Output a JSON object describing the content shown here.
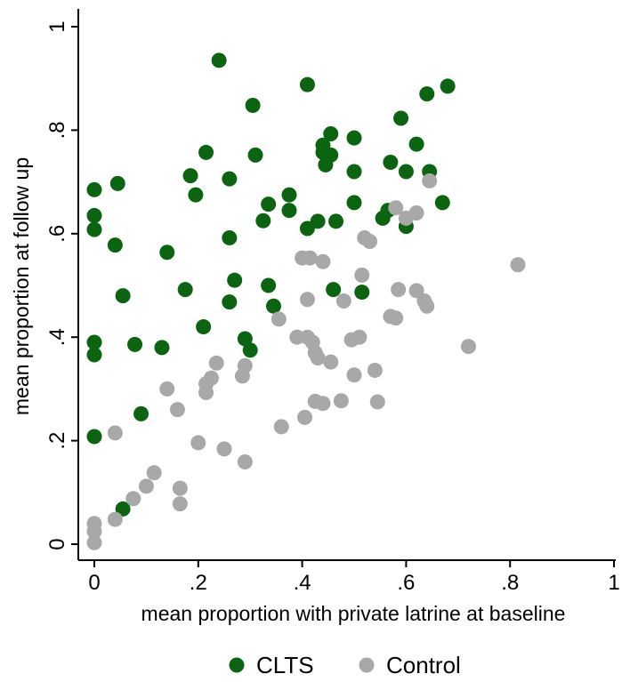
{
  "chart_data": {
    "type": "scatter",
    "xlabel": "mean proportion with private latrine at baseline",
    "ylabel": "mean proportion at follow up",
    "xlim": [
      0,
      1
    ],
    "ylim": [
      0,
      1
    ],
    "x_ticks": [
      0,
      0.2,
      0.4,
      0.6,
      0.8,
      1
    ],
    "y_ticks": [
      0,
      0.2,
      0.4,
      0.6,
      0.8,
      1
    ],
    "x_tick_labels": [
      "0",
      ".2",
      ".4",
      ".6",
      ".8",
      "1"
    ],
    "y_tick_labels": [
      "0",
      ".2",
      ".4",
      ".6",
      ".8",
      "1"
    ],
    "grid": false,
    "legend": "bottom",
    "series": [
      {
        "name": "CLTS",
        "color": "#0b6410",
        "points": [
          [
            0.0,
            0.685
          ],
          [
            0.0,
            0.635
          ],
          [
            0.0,
            0.608
          ],
          [
            0.0,
            0.39
          ],
          [
            0.0,
            0.366
          ],
          [
            0.0,
            0.208
          ],
          [
            0.04,
            0.578
          ],
          [
            0.045,
            0.697
          ],
          [
            0.055,
            0.48
          ],
          [
            0.055,
            0.068
          ],
          [
            0.078,
            0.386
          ],
          [
            0.09,
            0.252
          ],
          [
            0.13,
            0.38
          ],
          [
            0.14,
            0.564
          ],
          [
            0.175,
            0.492
          ],
          [
            0.185,
            0.712
          ],
          [
            0.195,
            0.675
          ],
          [
            0.21,
            0.42
          ],
          [
            0.215,
            0.757
          ],
          [
            0.26,
            0.706
          ],
          [
            0.26,
            0.592
          ],
          [
            0.26,
            0.468
          ],
          [
            0.27,
            0.51
          ],
          [
            0.24,
            0.935
          ],
          [
            0.29,
            0.397
          ],
          [
            0.3,
            0.375
          ],
          [
            0.305,
            0.848
          ],
          [
            0.31,
            0.752
          ],
          [
            0.325,
            0.625
          ],
          [
            0.335,
            0.657
          ],
          [
            0.335,
            0.5
          ],
          [
            0.345,
            0.46
          ],
          [
            0.375,
            0.675
          ],
          [
            0.375,
            0.645
          ],
          [
            0.41,
            0.888
          ],
          [
            0.41,
            0.61
          ],
          [
            0.43,
            0.624
          ],
          [
            0.44,
            0.771
          ],
          [
            0.44,
            0.757
          ],
          [
            0.445,
            0.733
          ],
          [
            0.455,
            0.752
          ],
          [
            0.455,
            0.793
          ],
          [
            0.46,
            0.492
          ],
          [
            0.465,
            0.624
          ],
          [
            0.5,
            0.785
          ],
          [
            0.5,
            0.72
          ],
          [
            0.5,
            0.66
          ],
          [
            0.515,
            0.487
          ],
          [
            0.555,
            0.63
          ],
          [
            0.565,
            0.645
          ],
          [
            0.57,
            0.738
          ],
          [
            0.59,
            0.823
          ],
          [
            0.6,
            0.72
          ],
          [
            0.6,
            0.614
          ],
          [
            0.62,
            0.773
          ],
          [
            0.64,
            0.87
          ],
          [
            0.645,
            0.72
          ],
          [
            0.67,
            0.66
          ],
          [
            0.68,
            0.885
          ]
        ]
      },
      {
        "name": "Control",
        "color": "#a8a8a8",
        "points": [
          [
            0.0,
            0.04
          ],
          [
            0.0,
            0.025
          ],
          [
            0.0,
            0.003
          ],
          [
            0.04,
            0.215
          ],
          [
            0.04,
            0.048
          ],
          [
            0.075,
            0.088
          ],
          [
            0.1,
            0.112
          ],
          [
            0.115,
            0.138
          ],
          [
            0.14,
            0.3
          ],
          [
            0.16,
            0.26
          ],
          [
            0.165,
            0.108
          ],
          [
            0.165,
            0.078
          ],
          [
            0.2,
            0.196
          ],
          [
            0.215,
            0.31
          ],
          [
            0.215,
            0.293
          ],
          [
            0.225,
            0.321
          ],
          [
            0.235,
            0.35
          ],
          [
            0.25,
            0.184
          ],
          [
            0.285,
            0.325
          ],
          [
            0.29,
            0.345
          ],
          [
            0.29,
            0.159
          ],
          [
            0.355,
            0.435
          ],
          [
            0.36,
            0.227
          ],
          [
            0.39,
            0.4
          ],
          [
            0.4,
            0.553
          ],
          [
            0.405,
            0.245
          ],
          [
            0.41,
            0.473
          ],
          [
            0.41,
            0.4
          ],
          [
            0.415,
            0.553
          ],
          [
            0.42,
            0.39
          ],
          [
            0.425,
            0.37
          ],
          [
            0.425,
            0.276
          ],
          [
            0.43,
            0.36
          ],
          [
            0.44,
            0.546
          ],
          [
            0.44,
            0.272
          ],
          [
            0.455,
            0.352
          ],
          [
            0.475,
            0.277
          ],
          [
            0.48,
            0.47
          ],
          [
            0.495,
            0.395
          ],
          [
            0.5,
            0.327
          ],
          [
            0.51,
            0.4
          ],
          [
            0.515,
            0.52
          ],
          [
            0.52,
            0.592
          ],
          [
            0.53,
            0.585
          ],
          [
            0.54,
            0.336
          ],
          [
            0.545,
            0.275
          ],
          [
            0.57,
            0.44
          ],
          [
            0.58,
            0.65
          ],
          [
            0.58,
            0.437
          ],
          [
            0.585,
            0.492
          ],
          [
            0.6,
            0.63
          ],
          [
            0.62,
            0.64
          ],
          [
            0.62,
            0.49
          ],
          [
            0.635,
            0.47
          ],
          [
            0.64,
            0.46
          ],
          [
            0.645,
            0.702
          ],
          [
            0.72,
            0.382
          ],
          [
            0.815,
            0.54
          ]
        ]
      }
    ]
  }
}
